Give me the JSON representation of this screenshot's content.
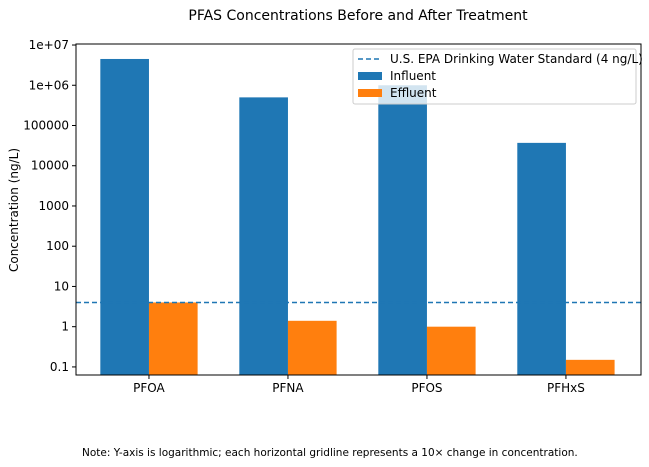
{
  "chart_data": {
    "type": "bar",
    "title": "PFAS Concentrations Before and After Treatment",
    "xlabel": "",
    "ylabel": "Concentration (ng/L)",
    "yscale": "log",
    "ylim": [
      0.063,
      10600000
    ],
    "categories": [
      "PFOA",
      "PFNA",
      "PFOS",
      "PFHxS"
    ],
    "yticks": [
      0.1,
      1,
      10,
      100,
      1000,
      10000,
      100000,
      1000000,
      10000000
    ],
    "ytick_labels": [
      "0.1",
      "1",
      "10",
      "100",
      "1000",
      "10000",
      "100000",
      "1e+06",
      "1e+07"
    ],
    "series": [
      {
        "name": "Influent",
        "color": "#1f77b4",
        "values": [
          4500000,
          500000,
          1000000,
          37000
        ]
      },
      {
        "name": "Effluent",
        "color": "#ff7f0e",
        "values": [
          4,
          1.4,
          1,
          0.15
        ]
      }
    ],
    "reference_line": {
      "name": "U.S. EPA Drinking Water Standard (4 ng/L)",
      "value": 4,
      "color": "#1f77b4",
      "style": "dashed"
    },
    "grid": false,
    "legend_position": "top-right",
    "note": "Note: Y-axis is logarithmic; each horizontal gridline represents a 10× change in concentration."
  }
}
